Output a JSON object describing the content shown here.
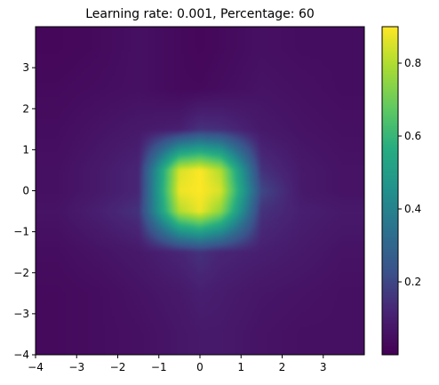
{
  "chart_data": {
    "type": "heatmap",
    "title": "Learning rate: 0.001, Percentage: 60",
    "xlabel": "",
    "ylabel": "",
    "xlim": [
      -4,
      4
    ],
    "ylim": [
      -4,
      4
    ],
    "xticks": [
      -4,
      -3,
      -2,
      -1,
      0,
      1,
      2,
      3
    ],
    "yticks": [
      -4,
      -3,
      -2,
      -1,
      0,
      1,
      2,
      3
    ],
    "colormap": "viridis",
    "colorbar": {
      "range": [
        0.0,
        0.9
      ],
      "ticks": [
        0.2,
        0.4,
        0.6,
        0.8
      ]
    },
    "peak": {
      "x": 0.0,
      "y": 0.0,
      "value": 0.9
    },
    "grid_values": {
      "x": [
        -3.5,
        -2.5,
        -1.5,
        -0.5,
        0.0,
        0.5,
        1.5,
        2.5,
        3.5
      ],
      "y": [
        3.5,
        2.5,
        1.5,
        0.5,
        0.0,
        -0.5,
        -1.5,
        -2.5,
        -3.5
      ],
      "z": [
        [
          0.02,
          0.03,
          0.05,
          0.03,
          0.02,
          0.03,
          0.05,
          0.04,
          0.04
        ],
        [
          0.03,
          0.04,
          0.05,
          0.03,
          0.03,
          0.04,
          0.06,
          0.05,
          0.04
        ],
        [
          0.04,
          0.06,
          0.08,
          0.1,
          0.15,
          0.14,
          0.08,
          0.06,
          0.05
        ],
        [
          0.05,
          0.08,
          0.12,
          0.85,
          0.9,
          0.8,
          0.15,
          0.08,
          0.06
        ],
        [
          0.05,
          0.08,
          0.12,
          0.88,
          0.9,
          0.85,
          0.2,
          0.08,
          0.06
        ],
        [
          0.06,
          0.1,
          0.15,
          0.8,
          0.88,
          0.75,
          0.15,
          0.1,
          0.08
        ],
        [
          0.04,
          0.06,
          0.08,
          0.12,
          0.15,
          0.12,
          0.1,
          0.08,
          0.06
        ],
        [
          0.03,
          0.04,
          0.06,
          0.08,
          0.1,
          0.09,
          0.07,
          0.06,
          0.05
        ],
        [
          0.03,
          0.04,
          0.05,
          0.07,
          0.08,
          0.08,
          0.06,
          0.05,
          0.05
        ]
      ]
    }
  }
}
